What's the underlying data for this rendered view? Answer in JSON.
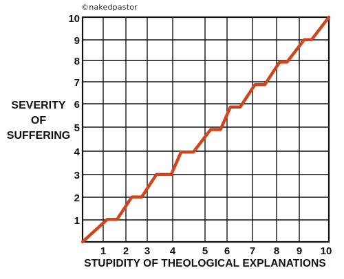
{
  "credit": "©nakedpastor",
  "chart_data": {
    "type": "line",
    "title": "",
    "xlabel": "STUPIDITY OF THEOLOGICAL EXPLANATIONS",
    "ylabel_lines": [
      "SEVERITY",
      "OF",
      "SUFFERING"
    ],
    "xlim": [
      0,
      10
    ],
    "ylim": [
      0,
      10
    ],
    "grid": true,
    "x_tick_labels": [
      1,
      2,
      3,
      4,
      5,
      6,
      7,
      8,
      9,
      10
    ],
    "y_tick_labels": [
      1,
      2,
      3,
      4,
      5,
      6,
      7,
      8,
      9,
      10
    ],
    "series": [
      {
        "color": "#d2451c",
        "points": [
          [
            0,
            0
          ],
          [
            1,
            1
          ],
          [
            1.4,
            1
          ],
          [
            2,
            2
          ],
          [
            2.4,
            2
          ],
          [
            3,
            3
          ],
          [
            3.6,
            3
          ],
          [
            4,
            4
          ],
          [
            4.5,
            4
          ],
          [
            5.2,
            5
          ],
          [
            5.6,
            5
          ],
          [
            6,
            6
          ],
          [
            6.4,
            6
          ],
          [
            7,
            7
          ],
          [
            7.4,
            7
          ],
          [
            8,
            8
          ],
          [
            8.3,
            8
          ],
          [
            9,
            9
          ],
          [
            9.3,
            9
          ],
          [
            10,
            10
          ]
        ]
      }
    ]
  }
}
